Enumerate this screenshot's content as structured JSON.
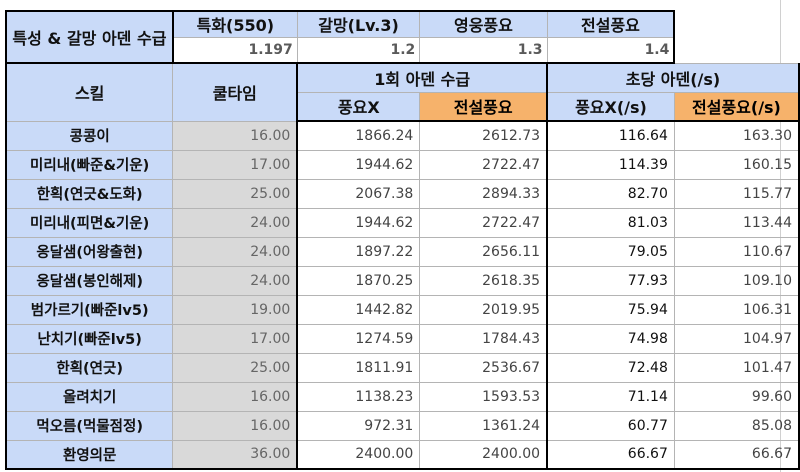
{
  "header": {
    "title": "특성 & 갈망 아덴 수급",
    "bonus_cols": [
      {
        "label": "특화(550)",
        "value": "1.197"
      },
      {
        "label": "갈망(Lv.3)",
        "value": "1.2"
      },
      {
        "label": "영웅풍요",
        "value": "1.3"
      },
      {
        "label": "전설풍요",
        "value": "1.4"
      }
    ],
    "skill_label": "스킬",
    "cooldown_label": "쿨타임",
    "group1_label": "1회 아덴 수급",
    "group2_label": "초당 아덴(/s)",
    "sub_labels": [
      "풍요X",
      "전설풍요",
      "풍요X(/s)",
      "전설풍요(/s)"
    ]
  },
  "colors": {
    "header_blue": "#c9daf8",
    "orange": "#f6b26b",
    "cooldown_gray": "#d9d9d9"
  },
  "rows": [
    {
      "skill": "콩콩이",
      "cooldown": "16.00",
      "once_none": "1866.24",
      "once_legend": "2612.73",
      "ps_none": "116.64",
      "ps_legend": "163.30"
    },
    {
      "skill": "미리내(빠준&기운)",
      "cooldown": "17.00",
      "once_none": "1944.62",
      "once_legend": "2722.47",
      "ps_none": "114.39",
      "ps_legend": "160.15"
    },
    {
      "skill": "한획(연긋&도화)",
      "cooldown": "25.00",
      "once_none": "2067.38",
      "once_legend": "2894.33",
      "ps_none": "82.70",
      "ps_legend": "115.77"
    },
    {
      "skill": "미리내(피면&기운)",
      "cooldown": "24.00",
      "once_none": "1944.62",
      "once_legend": "2722.47",
      "ps_none": "81.03",
      "ps_legend": "113.44"
    },
    {
      "skill": "옹달샘(어왕출현)",
      "cooldown": "24.00",
      "once_none": "1897.22",
      "once_legend": "2656.11",
      "ps_none": "79.05",
      "ps_legend": "110.67"
    },
    {
      "skill": "옹달샘(봉인해제)",
      "cooldown": "24.00",
      "once_none": "1870.25",
      "once_legend": "2618.35",
      "ps_none": "77.93",
      "ps_legend": "109.10"
    },
    {
      "skill": "범가르기(빠준lv5)",
      "cooldown": "19.00",
      "once_none": "1442.82",
      "once_legend": "2019.95",
      "ps_none": "75.94",
      "ps_legend": "106.31"
    },
    {
      "skill": "난치기(빠준lv5)",
      "cooldown": "17.00",
      "once_none": "1274.59",
      "once_legend": "1784.43",
      "ps_none": "74.98",
      "ps_legend": "104.97"
    },
    {
      "skill": "한획(연긋)",
      "cooldown": "25.00",
      "once_none": "1811.91",
      "once_legend": "2536.67",
      "ps_none": "72.48",
      "ps_legend": "101.47"
    },
    {
      "skill": "올려치기",
      "cooldown": "16.00",
      "once_none": "1138.23",
      "once_legend": "1593.53",
      "ps_none": "71.14",
      "ps_legend": "99.60"
    },
    {
      "skill": "먹오름(먹물점정)",
      "cooldown": "16.00",
      "once_none": "972.31",
      "once_legend": "1361.24",
      "ps_none": "60.77",
      "ps_legend": "85.08"
    },
    {
      "skill": "환영의문",
      "cooldown": "36.00",
      "once_none": "2400.00",
      "once_legend": "2400.00",
      "ps_none": "66.67",
      "ps_legend": "66.67"
    }
  ]
}
